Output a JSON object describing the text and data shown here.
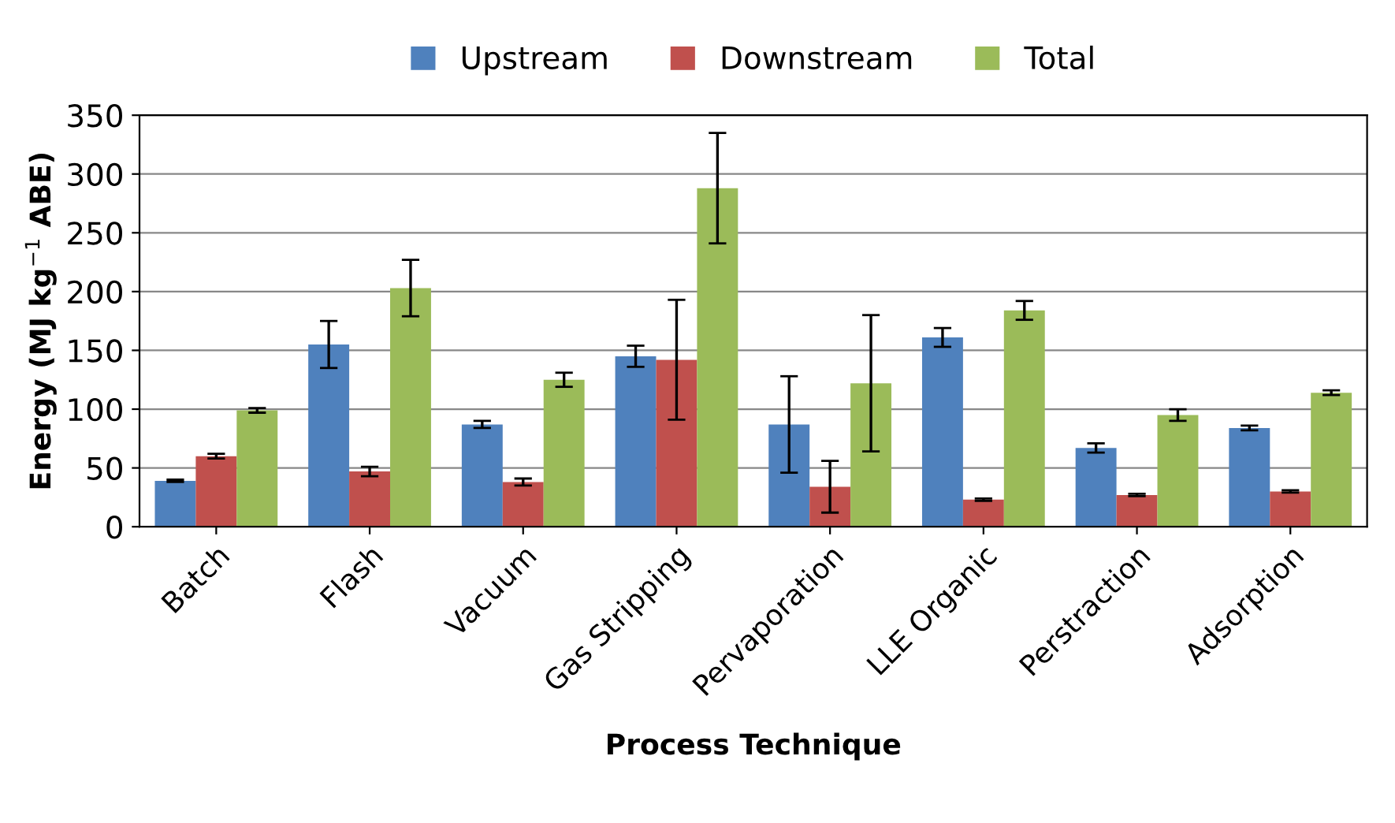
{
  "chart_data": {
    "type": "bar",
    "xlabel": "Process Technique",
    "ylabel": "Energy (MJ kg$^{−1}$ ABE)",
    "categories": [
      "Batch",
      "Flash",
      "Vacuum",
      "Gas Stripping",
      "Pervaporation",
      "LLE Organic",
      "Perstraction",
      "Adsorption"
    ],
    "series": [
      {
        "name": "Upstream",
        "color": "#4f81bd",
        "values": [
          39,
          155,
          87,
          145,
          87,
          161,
          67,
          84
        ],
        "errors": [
          1,
          20,
          3,
          9,
          41,
          8,
          4,
          2
        ]
      },
      {
        "name": "Downstream",
        "color": "#c0504d",
        "values": [
          60,
          47,
          38,
          142,
          34,
          23,
          27,
          30
        ],
        "errors": [
          2,
          4,
          3,
          51,
          22,
          1,
          1,
          1
        ]
      },
      {
        "name": "Total",
        "color": "#9bbb59",
        "values": [
          99,
          203,
          125,
          288,
          122,
          184,
          95,
          114
        ],
        "errors": [
          2,
          24,
          6,
          47,
          58,
          8,
          5,
          2
        ]
      }
    ],
    "ylim": [
      0,
      350
    ],
    "yticks": [
      0,
      50,
      100,
      150,
      200,
      250,
      300,
      350
    ],
    "grid": "y",
    "legend": "top"
  }
}
